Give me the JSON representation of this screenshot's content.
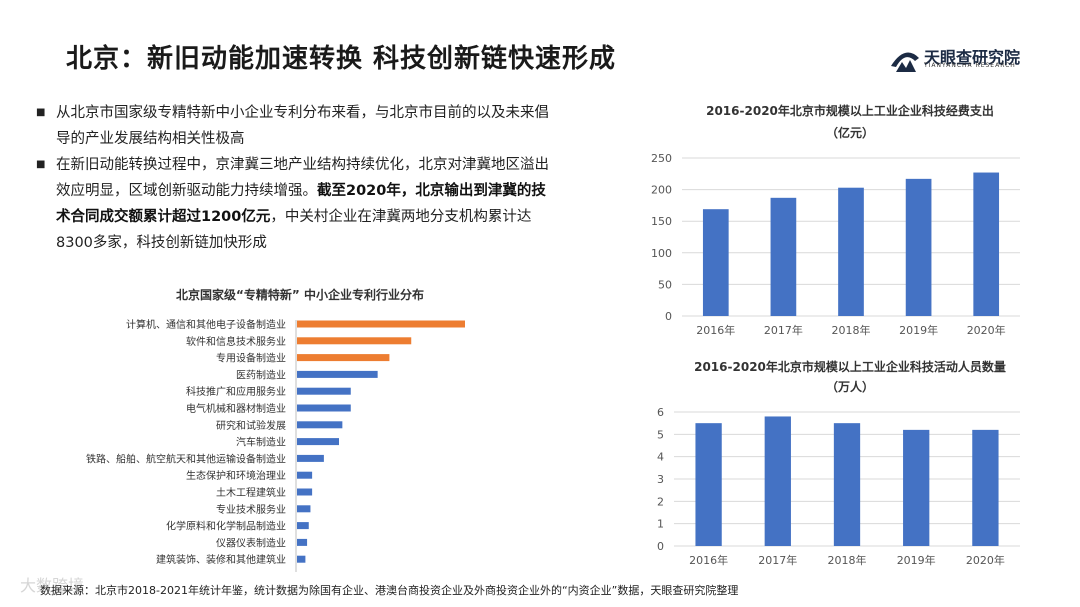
{
  "page": {
    "title": "北京：新旧动能加速转换 科技创新链快速形成",
    "logo_text": "天眼查研究院",
    "logo_sub": "TIANYANCHA RESEARCH",
    "bullets": [
      {
        "text": "从北京市国家级专精特新中小企业专利分布来看，与北京市目前的以及未来倡导的产业发展结构相关性极高"
      },
      {
        "text_pre": "在新旧动能转换过程中，京津冀三地产业结构持续优化，北京对津冀地区溢出效应明显，区域创新驱动能力持续增强。",
        "text_bold": "截至2020年，北京输出到津冀的技术合同成交额累计超过1200亿元",
        "text_post": "，中关村企业在津冀两地分支机构累计达8300多家，科技创新链加快形成"
      }
    ],
    "source": "数据来源：北京市2018-2021年统计年鉴，统计数据为除国有企业、港澳台商投资企业及外商投资企业外的“内资企业”数据，天眼查研究院整理",
    "watermark": "大数跨境"
  },
  "colors": {
    "orange": "#ED7D31",
    "blue": "#4472C4",
    "grid": "#d9d9d9"
  },
  "chart_data": [
    {
      "type": "bar",
      "orientation": "horizontal",
      "title": "北京国家级“专精特新” 中小企业专利行业分布",
      "categories": [
        "计算机、通信和其他电子设备制造业",
        "软件和信息技术服务业",
        "专用设备制造业",
        "医药制造业",
        "科技推广和应用服务业",
        "电气机械和器材制造业",
        "研究和试验发展",
        "汽车制造业",
        "铁路、船舶、航空航天和其他运输设备制造业",
        "生态保护和环境治理业",
        "土木工程建筑业",
        "专业技术服务业",
        "化学原料和化学制品制造业",
        "仪器仪表制造业",
        "建筑装饰、装修和其他建筑业"
      ],
      "values": [
        100,
        68,
        55,
        48,
        32,
        32,
        27,
        25,
        16,
        9,
        9,
        8,
        7,
        6,
        5
      ],
      "highlight_count": 3,
      "grid": false
    },
    {
      "type": "bar",
      "title": "2016-2020年北京市规模以上工业企业科技经费支出",
      "subtitle": "（亿元）",
      "categories": [
        "2016年",
        "2017年",
        "2018年",
        "2019年",
        "2020年"
      ],
      "values": [
        169,
        187,
        203,
        217,
        227
      ],
      "ylim": [
        0,
        250
      ],
      "yticks": [
        0,
        50,
        100,
        150,
        200,
        250
      ],
      "grid": true
    },
    {
      "type": "bar",
      "title": "2016-2020年北京市规模以上工业企业科技活动人员数量",
      "subtitle": "（万人）",
      "categories": [
        "2016年",
        "2017年",
        "2018年",
        "2019年",
        "2020年"
      ],
      "values": [
        5.5,
        5.8,
        5.5,
        5.2,
        5.2
      ],
      "ylim": [
        0,
        6
      ],
      "yticks": [
        0,
        1,
        2,
        3,
        4,
        5,
        6
      ],
      "grid": true
    }
  ]
}
